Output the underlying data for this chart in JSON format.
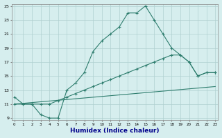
{
  "title": "",
  "xlabel": "Humidex (Indice chaleur)",
  "bg_color": "#d6eeee",
  "grid_color": "#b0d0d0",
  "line_color": "#2e7d6e",
  "line1_x": [
    0,
    1,
    2,
    3,
    4,
    5,
    6,
    7,
    8,
    9,
    10,
    11,
    12,
    13,
    14,
    15,
    16,
    17,
    18,
    19,
    20,
    21,
    22,
    23
  ],
  "line1_y": [
    12,
    11,
    11,
    9.5,
    9,
    9,
    13,
    14,
    15.5,
    18.5,
    20,
    21,
    22,
    24,
    24,
    25,
    23,
    21,
    19,
    18,
    17,
    15,
    15.5,
    15.5
  ],
  "line2_x": [
    0,
    1,
    2,
    3,
    4,
    5,
    6,
    7,
    8,
    9,
    10,
    11,
    12,
    13,
    14,
    15,
    16,
    17,
    18,
    19,
    20,
    21,
    22,
    23
  ],
  "line2_y": [
    11,
    11,
    11,
    11,
    11,
    11.5,
    12,
    12.5,
    13,
    13.5,
    14,
    14.5,
    15,
    15.5,
    16,
    16.5,
    17,
    17.5,
    18,
    18,
    17,
    15,
    15.5,
    15.5
  ],
  "line3_x": [
    0,
    23
  ],
  "line3_y": [
    11,
    13.5
  ],
  "xmin": 0,
  "xmax": 23,
  "ymin": 9,
  "ymax": 25,
  "yticks": [
    9,
    11,
    13,
    15,
    17,
    19,
    21,
    23,
    25
  ],
  "xticks": [
    0,
    1,
    2,
    3,
    4,
    5,
    6,
    7,
    8,
    9,
    10,
    11,
    12,
    13,
    14,
    15,
    16,
    17,
    18,
    19,
    20,
    21,
    22,
    23
  ],
  "xlabel_color": "#00008b",
  "xlabel_fontsize": 6.5
}
